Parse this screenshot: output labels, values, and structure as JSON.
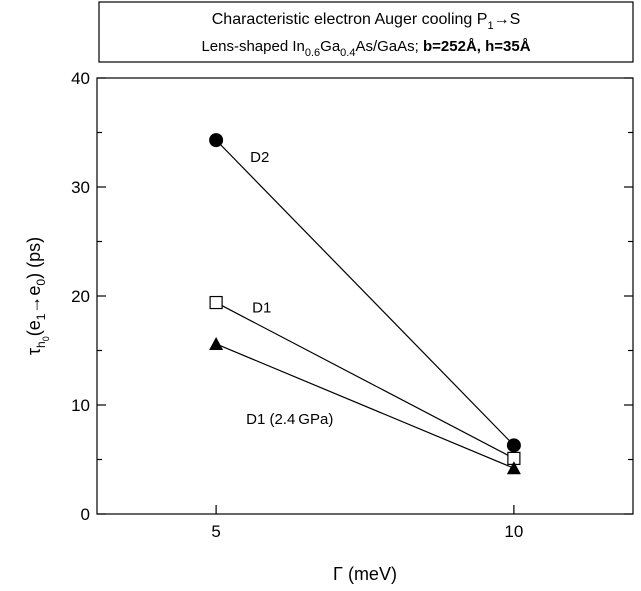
{
  "chart_data": {
    "type": "line",
    "title": "Characteristic electron Auger cooling P₁→S",
    "title_parts": {
      "line1_text": "Characteristic electron Auger cooling P",
      "line1_sub": "1",
      "line1_tail": "→S",
      "line2_a": "Lens-shaped In",
      "line2_sub1": "0.6",
      "line2_b": "Ga",
      "line2_sub2": "0.4",
      "line2_c": "As/GaAs; ",
      "line2_bold": "b=252Å, h=35Å"
    },
    "xlabel": "Γ (meV)",
    "ylabel_parts": {
      "tau": "τ",
      "sub_h": "h",
      "sub_0": "0",
      "open": "(e",
      "sub_e1": "1",
      "arrow": "→e",
      "sub_e0": "0",
      "close": ") (ps)"
    },
    "xlim": [
      3,
      12
    ],
    "ylim": [
      0,
      40
    ],
    "xticks": [
      5,
      10
    ],
    "yticks": [
      0,
      10,
      20,
      30,
      40
    ],
    "grid": false,
    "series": [
      {
        "name": "D2",
        "marker": "filled-circle",
        "x": [
          5,
          10
        ],
        "y": [
          34.3,
          6.3
        ]
      },
      {
        "name": "D1",
        "marker": "open-square",
        "x": [
          5,
          10
        ],
        "y": [
          19.4,
          5.1
        ]
      },
      {
        "name": "D1 (2.4 GPa)",
        "marker": "filled-triangle",
        "x": [
          5,
          10
        ],
        "y": [
          15.6,
          4.2
        ]
      }
    ]
  }
}
